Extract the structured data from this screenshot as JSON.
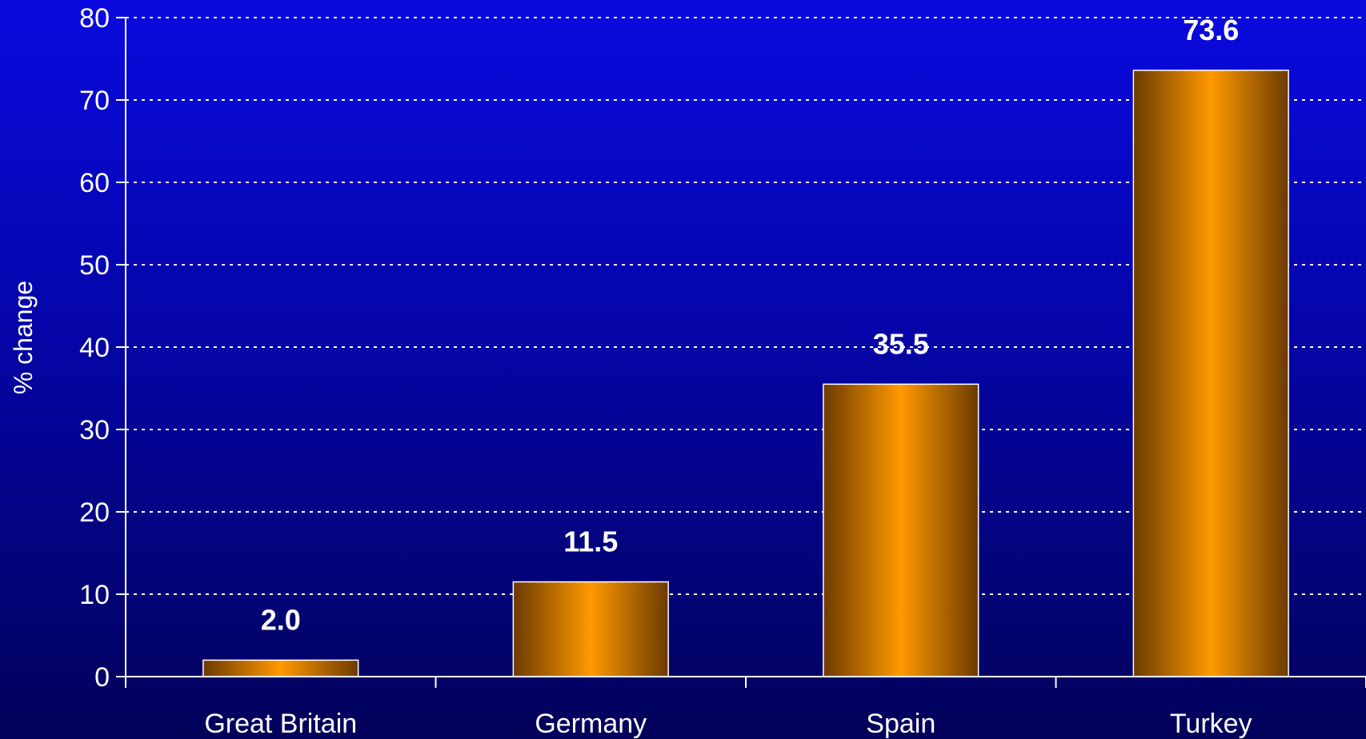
{
  "chart_data": {
    "type": "bar",
    "categories": [
      "Great Britain",
      "Germany",
      "Spain",
      "Turkey"
    ],
    "values": [
      2.0,
      11.5,
      35.5,
      73.6
    ],
    "data_labels": [
      "2.0",
      "11.5",
      "35.5",
      "73.6"
    ],
    "title": "",
    "xlabel": "",
    "ylabel": "% change",
    "ylim": [
      0,
      80
    ],
    "yticks": [
      0,
      10,
      20,
      30,
      40,
      50,
      60,
      70,
      80
    ],
    "grid": true,
    "legend": "none"
  },
  "colors": {
    "bar_center": "#ff9900",
    "bar_edge": "#6b3a00",
    "axis": "#ffffff",
    "gridline": "#ffffff",
    "background_top": "#0a0ae0",
    "background_bottom": "#02025a"
  }
}
